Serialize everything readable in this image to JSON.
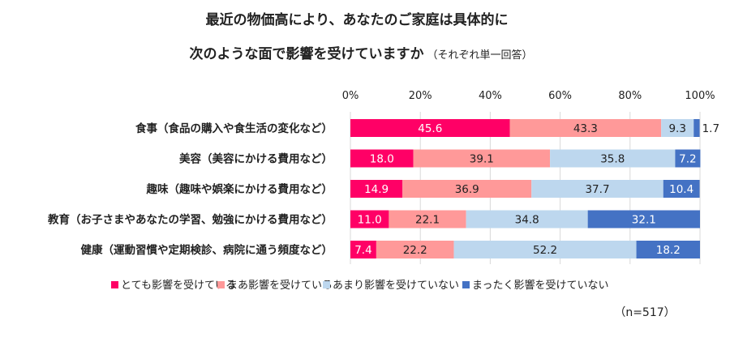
{
  "chart_data": {
    "type": "bar",
    "orientation": "horizontal",
    "stacked": true,
    "title_line1": "最近の物価高により、あなたのご家庭は具体的に",
    "title_line2": "次のような面で影響を受けていますか",
    "title_note": "（それぞれ単一回答）",
    "sample_note": "（n=517）",
    "xlim": [
      0,
      100
    ],
    "x_ticks": [
      "0%",
      "20%",
      "40%",
      "60%",
      "80%",
      "100%"
    ],
    "grid": true,
    "legend_position": "bottom",
    "categories": [
      "食事（食品の購入や食生活の変化など）",
      "美容（美容にかける費用など）",
      "趣味（趣味や娯楽にかける費用など）",
      "教育（お子さまやあなたの学習、勉強にかける費用など）",
      "健康（運動習慣や定期検診、病院に通う頻度など）"
    ],
    "series": [
      {
        "name": "とても影響を受けている",
        "color": "#FF0066",
        "label_color": "#ffffff",
        "values": [
          45.6,
          18.0,
          14.9,
          11.0,
          7.4
        ]
      },
      {
        "name": "まあ影響を受けている",
        "color": "#FF9999",
        "label_color": "#222222",
        "values": [
          43.3,
          39.1,
          36.9,
          22.1,
          22.2
        ]
      },
      {
        "name": "あまり影響を受けていない",
        "color": "#BDD7EE",
        "label_color": "#222222",
        "values": [
          9.3,
          35.8,
          37.7,
          34.8,
          52.2
        ]
      },
      {
        "name": "まったく影響を受けていない",
        "color": "#4472C4",
        "label_color": "#ffffff",
        "values": [
          1.7,
          7.2,
          10.4,
          32.1,
          18.2
        ]
      }
    ]
  }
}
